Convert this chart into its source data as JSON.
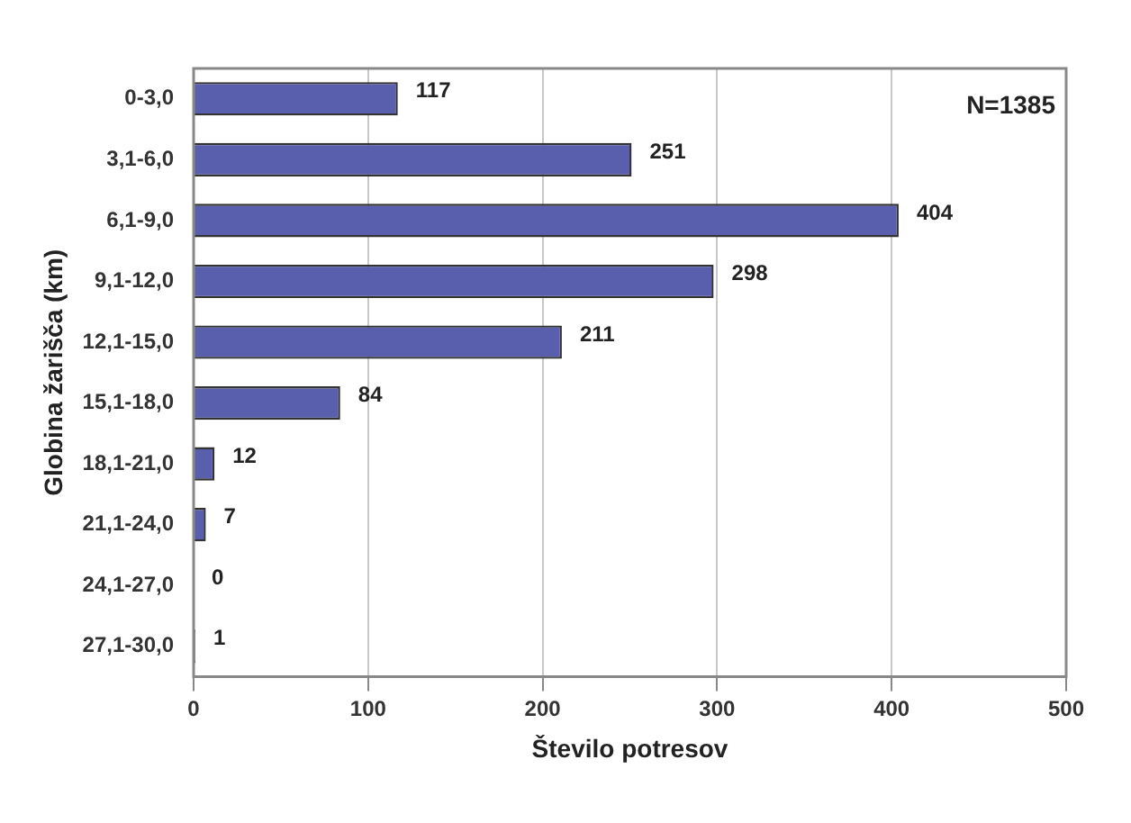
{
  "chart_data": {
    "type": "bar",
    "orientation": "horizontal",
    "categories": [
      "0-3,0",
      "3,1-6,0",
      "6,1-9,0",
      "9,1-12,0",
      "12,1-15,0",
      "15,1-18,0",
      "18,1-21,0",
      "21,1-24,0",
      "24,1-27,0",
      "27,1-30,0"
    ],
    "values": [
      117,
      251,
      404,
      298,
      211,
      84,
      12,
      7,
      0,
      1
    ],
    "color": "#5a5fad",
    "xlim": [
      0,
      500
    ],
    "xticks": [
      0,
      100,
      200,
      300,
      400,
      500
    ],
    "xlabel": "Število potresov",
    "ylabel": "Globina žarišča (km)",
    "annotations": [
      "N=1385"
    ],
    "data_labels": true,
    "grid": "x",
    "legend": false
  }
}
